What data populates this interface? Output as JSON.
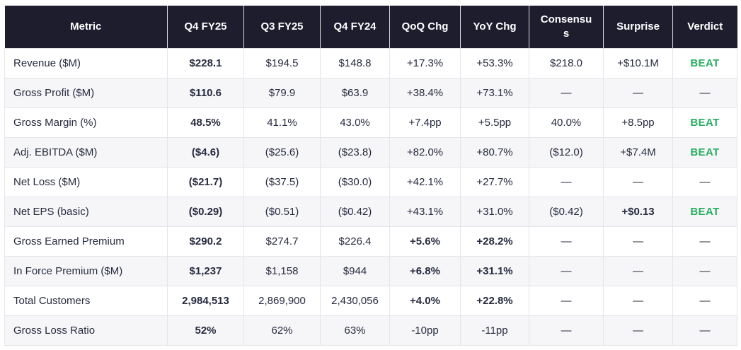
{
  "colors": {
    "header_bg": "#1d1d2e",
    "header_text": "#ffffff",
    "body_text": "#272b3f",
    "row_alt_bg": "#f6f6f9",
    "border": "#e4e4ea",
    "beat_green": "#27ae60",
    "page_bg": "#ffffff"
  },
  "chart_data": {
    "type": "table",
    "columns": [
      {
        "key": "metric",
        "label": "Metric"
      },
      {
        "key": "q4fy25",
        "label": "Q4 FY25"
      },
      {
        "key": "q3fy25",
        "label": "Q3 FY25"
      },
      {
        "key": "q4fy24",
        "label": "Q4 FY24"
      },
      {
        "key": "qoq",
        "label": "QoQ Chg"
      },
      {
        "key": "yoy",
        "label": "YoY Chg"
      },
      {
        "key": "consensus",
        "label": "Consensus"
      },
      {
        "key": "surprise",
        "label": "Surprise"
      },
      {
        "key": "verdict",
        "label": "Verdict"
      }
    ],
    "rows": [
      {
        "metric": "Revenue ($M)",
        "q4fy25": "$228.1",
        "q3fy25": "$194.5",
        "q4fy24": "$148.8",
        "qoq": "+17.3%",
        "yoy": "+53.3%",
        "consensus": "$218.0",
        "surprise": "+$10.1M",
        "verdict": "BEAT",
        "bold_cells": [
          "q4fy25"
        ]
      },
      {
        "metric": "Gross Profit ($M)",
        "q4fy25": "$110.6",
        "q3fy25": "$79.9",
        "q4fy24": "$63.9",
        "qoq": "+38.4%",
        "yoy": "+73.1%",
        "consensus": "—",
        "surprise": "—",
        "verdict": "—",
        "bold_cells": [
          "q4fy25"
        ]
      },
      {
        "metric": "Gross Margin (%)",
        "q4fy25": "48.5%",
        "q3fy25": "41.1%",
        "q4fy24": "43.0%",
        "qoq": "+7.4pp",
        "yoy": "+5.5pp",
        "consensus": "40.0%",
        "surprise": "+8.5pp",
        "verdict": "BEAT",
        "bold_cells": [
          "q4fy25"
        ]
      },
      {
        "metric": "Adj. EBITDA ($M)",
        "q4fy25": "($4.6)",
        "q3fy25": "($25.6)",
        "q4fy24": "($23.8)",
        "qoq": "+82.0%",
        "yoy": "+80.7%",
        "consensus": "($12.0)",
        "surprise": "+$7.4M",
        "verdict": "BEAT",
        "bold_cells": [
          "q4fy25"
        ]
      },
      {
        "metric": "Net Loss ($M)",
        "q4fy25": "($21.7)",
        "q3fy25": "($37.5)",
        "q4fy24": "($30.0)",
        "qoq": "+42.1%",
        "yoy": "+27.7%",
        "consensus": "—",
        "surprise": "—",
        "verdict": "—",
        "bold_cells": [
          "q4fy25"
        ]
      },
      {
        "metric": "Net EPS (basic)",
        "q4fy25": "($0.29)",
        "q3fy25": "($0.51)",
        "q4fy24": "($0.42)",
        "qoq": "+43.1%",
        "yoy": "+31.0%",
        "consensus": "($0.42)",
        "surprise": "+$0.13",
        "verdict": "BEAT",
        "bold_cells": [
          "q4fy25",
          "surprise"
        ]
      },
      {
        "metric": "Gross Earned Premium",
        "q4fy25": "$290.2",
        "q3fy25": "$274.7",
        "q4fy24": "$226.4",
        "qoq": "+5.6%",
        "yoy": "+28.2%",
        "consensus": "—",
        "surprise": "—",
        "verdict": "—",
        "bold_cells": [
          "q4fy25",
          "qoq",
          "yoy"
        ]
      },
      {
        "metric": "In Force Premium ($M)",
        "q4fy25": "$1,237",
        "q3fy25": "$1,158",
        "q4fy24": "$944",
        "qoq": "+6.8%",
        "yoy": "+31.1%",
        "consensus": "—",
        "surprise": "—",
        "verdict": "—",
        "bold_cells": [
          "q4fy25",
          "qoq",
          "yoy"
        ]
      },
      {
        "metric": "Total Customers",
        "q4fy25": "2,984,513",
        "q3fy25": "2,869,900",
        "q4fy24": "2,430,056",
        "qoq": "+4.0%",
        "yoy": "+22.8%",
        "consensus": "—",
        "surprise": "—",
        "verdict": "—",
        "bold_cells": [
          "q4fy25",
          "qoq",
          "yoy"
        ]
      },
      {
        "metric": "Gross Loss Ratio",
        "q4fy25": "52%",
        "q3fy25": "62%",
        "q4fy24": "63%",
        "qoq": "-10pp",
        "yoy": "-11pp",
        "consensus": "—",
        "surprise": "—",
        "verdict": "—",
        "bold_cells": [
          "q4fy25"
        ]
      }
    ]
  }
}
